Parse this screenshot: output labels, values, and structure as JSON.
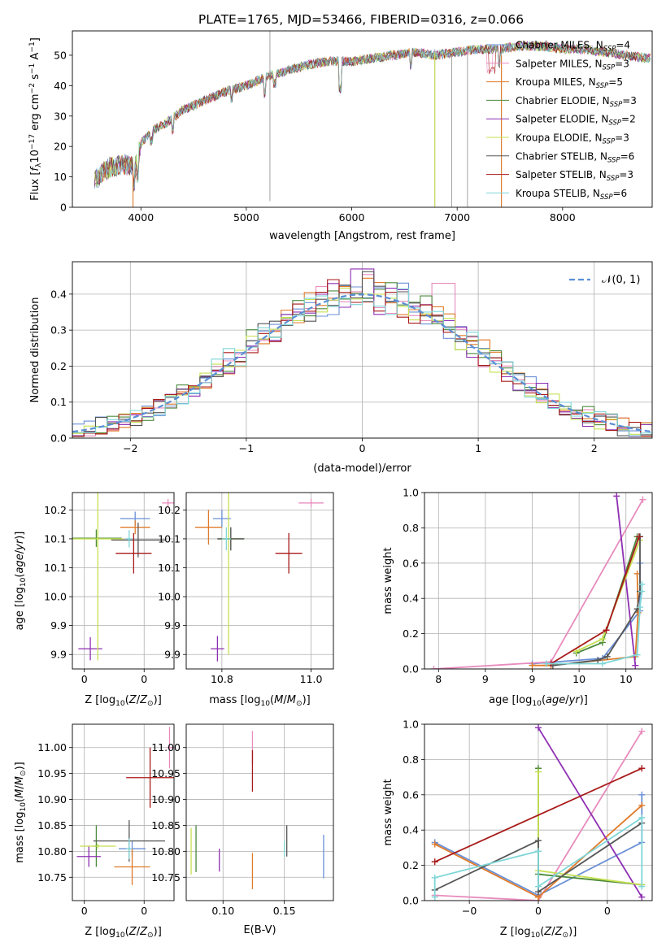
{
  "figure_title": "PLATE=1765, MJD=53466, FIBERID=0316, z=0.066",
  "colors": {
    "Chabrier MILES": "#6a8fd6",
    "Salpeter MILES": "#e88bbd",
    "Kroupa MILES": "#e07b2a",
    "Chabrier ELODIE": "#4c8a3c",
    "Salpeter ELODIE": "#8e2fb3",
    "Kroupa ELODIE": "#c5e051",
    "Chabrier STELIB": "#555555",
    "Salpeter STELIB": "#a81a1a",
    "Kroupa STELIB": "#7fd6d8"
  },
  "chart_data": [
    {
      "id": "spectrum",
      "type": "line",
      "title": "PLATE=1765, MJD=53466, FIBERID=0316, z=0.066",
      "xlabel": "wavelength [Angstrom, rest frame]",
      "ylabel": "Flux [f_λ10^-17 erg cm^-2 s^-1 A^-1]",
      "xlim": [
        3350,
        8850
      ],
      "ylim": [
        0,
        58
      ],
      "xticks": [
        4000,
        5000,
        6000,
        7000,
        8000
      ],
      "yticks": [
        0,
        10,
        20,
        30,
        40,
        50
      ],
      "legend_position": "right",
      "legend": [
        {
          "label": "Chabrier MILES, N",
          "sub": "SSP",
          "suffix": "=4",
          "model": "Chabrier MILES"
        },
        {
          "label": "Salpeter MILES, N",
          "sub": "SSP",
          "suffix": "=3",
          "model": "Salpeter MILES"
        },
        {
          "label": "Kroupa MILES, N",
          "sub": "SSP",
          "suffix": "=5",
          "model": "Kroupa MILES"
        },
        {
          "label": "Chabrier ELODIE, N",
          "sub": "SSP",
          "suffix": "=3",
          "model": "Chabrier ELODIE"
        },
        {
          "label": "Salpeter ELODIE, N",
          "sub": "SSP",
          "suffix": "=2",
          "model": "Salpeter ELODIE"
        },
        {
          "label": "Kroupa ELODIE, N",
          "sub": "SSP",
          "suffix": "=3",
          "model": "Kroupa ELODIE"
        },
        {
          "label": "Chabrier STELIB, N",
          "sub": "SSP",
          "suffix": "=6",
          "model": "Chabrier STELIB"
        },
        {
          "label": "Salpeter STELIB, N",
          "sub": "SSP",
          "suffix": "=3",
          "model": "Salpeter STELIB"
        },
        {
          "label": "Kroupa STELIB, N",
          "sub": "SSP",
          "suffix": "=6",
          "model": "Kroupa STELIB"
        }
      ],
      "continuum": {
        "x": [
          3560,
          3700,
          3850,
          3950,
          4000,
          4100,
          4250,
          4400,
          4600,
          4800,
          5000,
          5200,
          5400,
          5600,
          5800,
          6000,
          6200,
          6400,
          6600,
          6800,
          7000,
          7200,
          7400,
          7600,
          7800,
          8000,
          8200,
          8400,
          8600,
          8800
        ],
        "y": [
          9,
          13,
          14,
          13,
          21,
          25,
          28,
          32,
          35,
          38,
          40,
          43,
          45,
          47,
          48,
          48,
          49,
          50,
          51,
          50,
          51,
          52,
          52,
          53,
          53,
          52,
          52,
          51,
          50,
          49
        ]
      },
      "spikes": [
        {
          "x": 5224,
          "y": [
            2,
            58
          ]
        },
        {
          "x": 6788,
          "y": [
            0,
            52
          ]
        },
        {
          "x": 6948,
          "y": [
            0,
            50
          ]
        },
        {
          "x": 7098,
          "y": [
            0,
            52
          ]
        },
        {
          "x": 7420,
          "y": [
            0,
            53
          ]
        }
      ]
    },
    {
      "id": "residuals",
      "type": "histogram",
      "xlabel": "(data-model)/error",
      "ylabel": "Normed distribution",
      "xlim": [
        -2.5,
        2.5
      ],
      "ylim": [
        0,
        0.49
      ],
      "xticks": [
        -2,
        -1,
        0,
        1,
        2
      ],
      "yticks": [
        0.0,
        0.1,
        0.2,
        0.3,
        0.4
      ],
      "reference_curve": {
        "label": "𝒩(0, 1)",
        "mean": 0,
        "sigma": 1,
        "style": "dashed"
      },
      "legend_position": "top-right",
      "bin_width": 0.1,
      "grid": true
    },
    {
      "id": "age_vs_Z",
      "type": "scatter",
      "xlabel": "Z [log10(Z/Z☉)]",
      "ylabel": "age [log10(age/yr)]",
      "xlim": [
        -0.04,
        0.3
      ],
      "ylim": [
        9.875,
        10.18
      ],
      "xticks": [
        0.0,
        0.2
      ],
      "yticks": [
        9.9,
        9.95,
        10.0,
        10.05,
        10.1,
        10.15
      ],
      "points": [
        {
          "model": "Chabrier MILES",
          "x": 0.17,
          "xerr": 0.05,
          "y": 10.135,
          "yerr": 0.012
        },
        {
          "model": "Salpeter MILES",
          "x": 0.28,
          "xerr": 0.02,
          "y": 10.162,
          "yerr": 0.007
        },
        {
          "model": "Kroupa MILES",
          "x": 0.17,
          "xerr": 0.05,
          "y": 10.12,
          "yerr": 0.012
        },
        {
          "model": "Chabrier ELODIE",
          "x": 0.04,
          "xerr": 0.085,
          "y": 10.101,
          "yerr": 0.015
        },
        {
          "model": "Salpeter ELODIE",
          "x": 0.02,
          "xerr": 0.04,
          "y": 9.91,
          "yerr": 0.02
        },
        {
          "model": "Kroupa ELODIE",
          "x": 0.045,
          "xerr": 0.085,
          "y": 10.1,
          "yerr": 0.21
        },
        {
          "model": "Chabrier STELIB",
          "x": 0.18,
          "xerr": 0.09,
          "y": 10.098,
          "yerr": 0.03
        },
        {
          "model": "Salpeter STELIB",
          "x": 0.165,
          "xerr": 0.06,
          "y": 10.075,
          "yerr": 0.035
        },
        {
          "model": "Kroupa STELIB",
          "x": 0.15,
          "xerr": 0.01,
          "y": 10.1,
          "yerr": 0.015
        }
      ]
    },
    {
      "id": "age_vs_mass",
      "type": "scatter",
      "xlabel": "mass [log10(M/M☉)]",
      "ylabel": "",
      "xlim": [
        10.72,
        11.05
      ],
      "ylim": [
        9.875,
        10.18
      ],
      "xticks": [
        10.8,
        11.0
      ],
      "yticks": [
        9.9,
        9.95,
        10.0,
        10.05,
        10.1,
        10.15
      ],
      "points": [
        {
          "model": "Chabrier MILES",
          "x": 10.8,
          "xerr": 0.02,
          "y": 10.135,
          "yerr": 0.015
        },
        {
          "model": "Salpeter MILES",
          "x": 11.0,
          "xerr": 0.028,
          "y": 10.162,
          "yerr": 0.007
        },
        {
          "model": "Kroupa MILES",
          "x": 10.77,
          "xerr": 0.03,
          "y": 10.12,
          "yerr": 0.03
        },
        {
          "model": "Chabrier ELODIE",
          "x": 10.82,
          "xerr": 0.03,
          "y": 10.1,
          "yerr": 0.02
        },
        {
          "model": "Salpeter ELODIE",
          "x": 10.79,
          "xerr": 0.015,
          "y": 9.91,
          "yerr": 0.022
        },
        {
          "model": "Kroupa ELODIE",
          "x": 10.815,
          "xerr": 0.02,
          "y": 10.1,
          "yerr": 0.2
        },
        {
          "model": "Chabrier STELIB",
          "x": 10.82,
          "xerr": 0.03,
          "y": 10.1,
          "yerr": 0.02
        },
        {
          "model": "Salpeter STELIB",
          "x": 10.95,
          "xerr": 0.03,
          "y": 10.075,
          "yerr": 0.035
        },
        {
          "model": "Kroupa STELIB",
          "x": 10.81,
          "xerr": 0.01,
          "y": 10.1,
          "yerr": 0.02
        }
      ]
    },
    {
      "id": "weight_vs_age",
      "type": "line",
      "xlabel": "age  [log10(age/yr)]",
      "ylabel": "mass weight",
      "xlim": [
        7.85,
        10.28
      ],
      "ylim": [
        0.0,
        1.0
      ],
      "xticks": [
        8.0,
        8.5,
        9.0,
        9.5,
        10.0
      ],
      "yticks": [
        0.0,
        0.2,
        0.4,
        0.6,
        0.8,
        1.0
      ],
      "series": [
        {
          "model": "Chabrier MILES",
          "x": [
            9.0,
            9.75,
            10.15,
            10.15
          ],
          "y": [
            0.03,
            0.06,
            0.33,
            0.6
          ]
        },
        {
          "model": "Salpeter MILES",
          "x": [
            7.95,
            9.2,
            10.18
          ],
          "y": [
            0.0,
            0.04,
            0.96
          ]
        },
        {
          "model": "Kroupa MILES",
          "x": [
            9.0,
            9.2,
            10.1,
            10.13,
            10.12
          ],
          "y": [
            0.02,
            0.02,
            0.07,
            0.32,
            0.54
          ]
        },
        {
          "model": "Chabrier ELODIE",
          "x": [
            9.47,
            9.75,
            10.12
          ],
          "y": [
            0.09,
            0.15,
            0.75
          ]
        },
        {
          "model": "Salpeter ELODIE",
          "x": [
            9.9,
            10.1
          ],
          "y": [
            0.98,
            0.02
          ]
        },
        {
          "model": "Kroupa ELODIE",
          "x": [
            9.47,
            9.75,
            10.15
          ],
          "y": [
            0.1,
            0.17,
            0.73
          ]
        },
        {
          "model": "Chabrier STELIB",
          "x": [
            9.22,
            9.7,
            9.8,
            10.12,
            10.15,
            10.15
          ],
          "y": [
            0.02,
            0.05,
            0.07,
            0.34,
            0.44,
            0.75
          ]
        },
        {
          "model": "Salpeter STELIB",
          "x": [
            9.2,
            9.79,
            10.14
          ],
          "y": [
            0.03,
            0.22,
            0.75
          ]
        },
        {
          "model": "Kroupa STELIB",
          "x": [
            9.15,
            9.75,
            10.12,
            10.15,
            10.17,
            10.17
          ],
          "y": [
            0.03,
            0.03,
            0.08,
            0.35,
            0.44,
            0.48
          ]
        }
      ]
    },
    {
      "id": "mass_vs_Z",
      "type": "scatter",
      "xlabel": "Z [log10(Z/Z☉)]",
      "ylabel": "mass [log10(M/M☉)]",
      "xlim": [
        -0.04,
        0.3
      ],
      "ylim": [
        10.705,
        11.045
      ],
      "xticks": [
        0.0,
        0.2
      ],
      "yticks": [
        10.75,
        10.8,
        10.85,
        10.9,
        10.95,
        11.0
      ],
      "points": [
        {
          "model": "Chabrier MILES",
          "x": 0.16,
          "xerr": 0.045,
          "y": 10.805,
          "yerr": 0.015
        },
        {
          "model": "Salpeter MILES",
          "x": 0.285,
          "xerr": 0.01,
          "y": 11.0,
          "yerr": 0.04
        },
        {
          "model": "Kroupa MILES",
          "x": 0.16,
          "xerr": 0.06,
          "y": 10.77,
          "yerr": 0.035
        },
        {
          "model": "Chabrier ELODIE",
          "x": 0.04,
          "xerr": 0.01,
          "y": 10.81,
          "yerr": 0.04
        },
        {
          "model": "Salpeter ELODIE",
          "x": 0.015,
          "xerr": 0.04,
          "y": 10.79,
          "yerr": 0.02
        },
        {
          "model": "Kroupa ELODIE",
          "x": 0.045,
          "xerr": 0.06,
          "y": 10.81,
          "yerr": 0.005
        },
        {
          "model": "Chabrier STELIB",
          "x": 0.15,
          "xerr": 0.12,
          "y": 10.82,
          "yerr": 0.04
        },
        {
          "model": "Salpeter STELIB",
          "x": 0.22,
          "xerr": 0.08,
          "y": 10.942,
          "yerr": 0.058
        },
        {
          "model": "Kroupa STELIB",
          "x": 0.15,
          "xerr": 0.01,
          "y": 10.805,
          "yerr": 0.02
        }
      ]
    },
    {
      "id": "mass_vs_EBV",
      "type": "scatter",
      "xlabel": "E(B-V)",
      "ylabel": "",
      "xlim": [
        0.07,
        0.19
      ],
      "ylim": [
        10.705,
        11.045
      ],
      "xticks": [
        0.1,
        0.15
      ],
      "yticks": [
        10.75,
        10.8,
        10.85,
        10.9,
        10.95,
        11.0
      ],
      "points": [
        {
          "model": "Chabrier MILES",
          "x": 0.182,
          "xerr": 0.0,
          "y": 10.79,
          "yerr": 0.042
        },
        {
          "model": "Salpeter MILES",
          "x": 0.124,
          "xerr": 0.0,
          "y": 11.0,
          "yerr": 0.032
        },
        {
          "model": "Kroupa MILES",
          "x": 0.124,
          "xerr": 0.0,
          "y": 10.762,
          "yerr": 0.035
        },
        {
          "model": "Chabrier ELODIE",
          "x": 0.078,
          "xerr": 0.0,
          "y": 10.805,
          "yerr": 0.045
        },
        {
          "model": "Salpeter ELODIE",
          "x": 0.097,
          "xerr": 0.0,
          "y": 10.783,
          "yerr": 0.022
        },
        {
          "model": "Kroupa ELODIE",
          "x": 0.074,
          "xerr": 0.0,
          "y": 10.8,
          "yerr": 0.045
        },
        {
          "model": "Chabrier STELIB",
          "x": 0.152,
          "xerr": 0.0,
          "y": 10.82,
          "yerr": 0.03
        },
        {
          "model": "Salpeter STELIB",
          "x": 0.124,
          "xerr": 0.0,
          "y": 10.955,
          "yerr": 0.04
        },
        {
          "model": "Kroupa STELIB",
          "x": 0.15,
          "xerr": 0.0,
          "y": 10.805,
          "yerr": 0.015
        }
      ]
    },
    {
      "id": "weight_vs_Z",
      "type": "line",
      "xlabel": "Z [log10(Z/Z☉)]",
      "ylabel": "mass weight",
      "xlim": [
        -0.33,
        0.33
      ],
      "ylim": [
        0.0,
        1.0
      ],
      "xticks": [
        -0.2,
        0.0,
        0.2
      ],
      "yticks": [
        0.0,
        0.2,
        0.4,
        0.6,
        0.8,
        1.0
      ],
      "series": [
        {
          "model": "Chabrier MILES",
          "x": [
            -0.3,
            0.0,
            0.3,
            0.3
          ],
          "y": [
            0.33,
            0.03,
            0.33,
            0.6
          ]
        },
        {
          "model": "Salpeter MILES",
          "x": [
            -0.3,
            0.0,
            0.3
          ],
          "y": [
            0.03,
            0.0,
            0.96
          ]
        },
        {
          "model": "Kroupa MILES",
          "x": [
            -0.3,
            0.0,
            0.0,
            0.3
          ],
          "y": [
            0.32,
            0.02,
            0.02,
            0.54
          ]
        },
        {
          "model": "Chabrier ELODIE",
          "x": [
            0.0,
            0.0,
            0.3
          ],
          "y": [
            0.75,
            0.15,
            0.09
          ]
        },
        {
          "model": "Salpeter ELODIE",
          "x": [
            0.0,
            0.3
          ],
          "y": [
            0.98,
            0.02
          ]
        },
        {
          "model": "Kroupa ELODIE",
          "x": [
            0.0,
            0.0,
            0.3
          ],
          "y": [
            0.73,
            0.17,
            0.09
          ]
        },
        {
          "model": "Chabrier STELIB",
          "x": [
            -0.3,
            0.0,
            0.0,
            0.3
          ],
          "y": [
            0.06,
            0.34,
            0.05,
            0.44
          ]
        },
        {
          "model": "Salpeter STELIB",
          "x": [
            -0.3,
            0.3
          ],
          "y": [
            0.22,
            0.75
          ]
        },
        {
          "model": "Kroupa STELIB",
          "x": [
            -0.3,
            -0.3,
            0.0,
            0.0,
            0.3,
            0.3
          ],
          "y": [
            0.02,
            0.13,
            0.28,
            0.08,
            0.47,
            0.08
          ]
        }
      ]
    }
  ]
}
